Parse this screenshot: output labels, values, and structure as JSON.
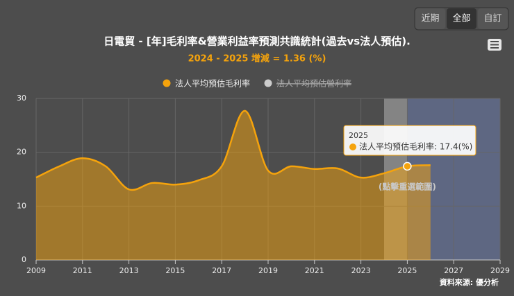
{
  "chart_data": {
    "type": "area",
    "title": "日電貿 - [年]毛利率&營業利益率預測共識統計(過去vs法人預估).",
    "subtitle": "2024 - 2025 增減 = 1.36 (%)",
    "x": [
      2009,
      2010,
      2011,
      2012,
      2013,
      2014,
      2015,
      2016,
      2017,
      2018,
      2019,
      2020,
      2021,
      2022,
      2023,
      2024,
      2025,
      2026
    ],
    "series": [
      {
        "name": "法人平均預估毛利率",
        "color": "#f5a30c",
        "visible": true,
        "values": [
          15.3,
          17.4,
          18.9,
          17.4,
          13.1,
          14.3,
          14.0,
          14.8,
          17.4,
          27.7,
          16.6,
          17.4,
          16.9,
          17.0,
          15.3,
          16.1,
          17.4,
          17.6
        ]
      },
      {
        "name": "法人平均預估營利率",
        "color": "#cccccc",
        "visible": false
      }
    ],
    "xlim": [
      2009,
      2029
    ],
    "xticks": [
      2009,
      2011,
      2013,
      2015,
      2017,
      2019,
      2021,
      2023,
      2025,
      2027,
      2029
    ],
    "ylim": [
      0,
      30
    ],
    "yticks": [
      0,
      10,
      20,
      30
    ],
    "grid": true,
    "bands": [
      {
        "from": 2024,
        "to": 2025,
        "color": "rgba(235,235,235,0.35)"
      },
      {
        "from": 2025,
        "to": 2029,
        "color": "rgba(110,125,175,0.55)"
      }
    ],
    "band_label": "(點擊重選範圍)",
    "tooltip": {
      "title": "2025",
      "text": "法人平均預估毛利率: 17.4(%)",
      "point": 16
    },
    "credit": "資料來源: 優分析",
    "buttons": [
      {
        "label": "近期",
        "active": false
      },
      {
        "label": "全部",
        "active": true
      },
      {
        "label": "自訂",
        "active": false
      }
    ]
  }
}
